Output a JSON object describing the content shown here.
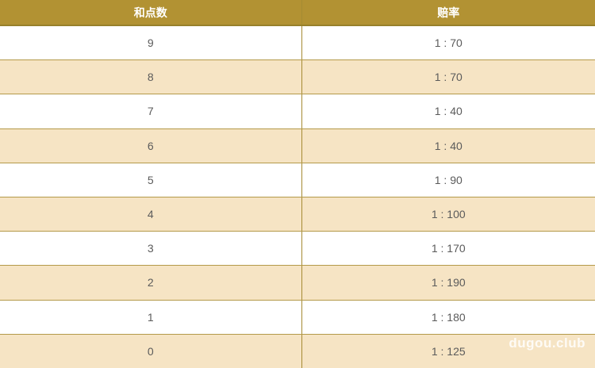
{
  "table": {
    "headers": {
      "points": "和点数",
      "odds": "赔率"
    },
    "rows": [
      {
        "points": "9",
        "odds": "1 : 70"
      },
      {
        "points": "8",
        "odds": "1 : 70"
      },
      {
        "points": "7",
        "odds": "1 : 40"
      },
      {
        "points": "6",
        "odds": "1 : 40"
      },
      {
        "points": "5",
        "odds": "1 : 90"
      },
      {
        "points": "4",
        "odds": "1 : 100"
      },
      {
        "points": "3",
        "odds": "1 : 170"
      },
      {
        "points": "2",
        "odds": "1 : 190"
      },
      {
        "points": "1",
        "odds": "1 : 180"
      },
      {
        "points": "0",
        "odds": "1 : 125"
      }
    ]
  },
  "watermark": {
    "text": "dugou.club"
  },
  "colors": {
    "header_bg": "#b29233",
    "header_text": "#ffffff",
    "row_alt_bg": "#f6e4c4",
    "row_bg": "#ffffff",
    "row_border": "#b49a4a",
    "column_divider": "#a58b33",
    "cell_text": "#5b5b5b"
  }
}
